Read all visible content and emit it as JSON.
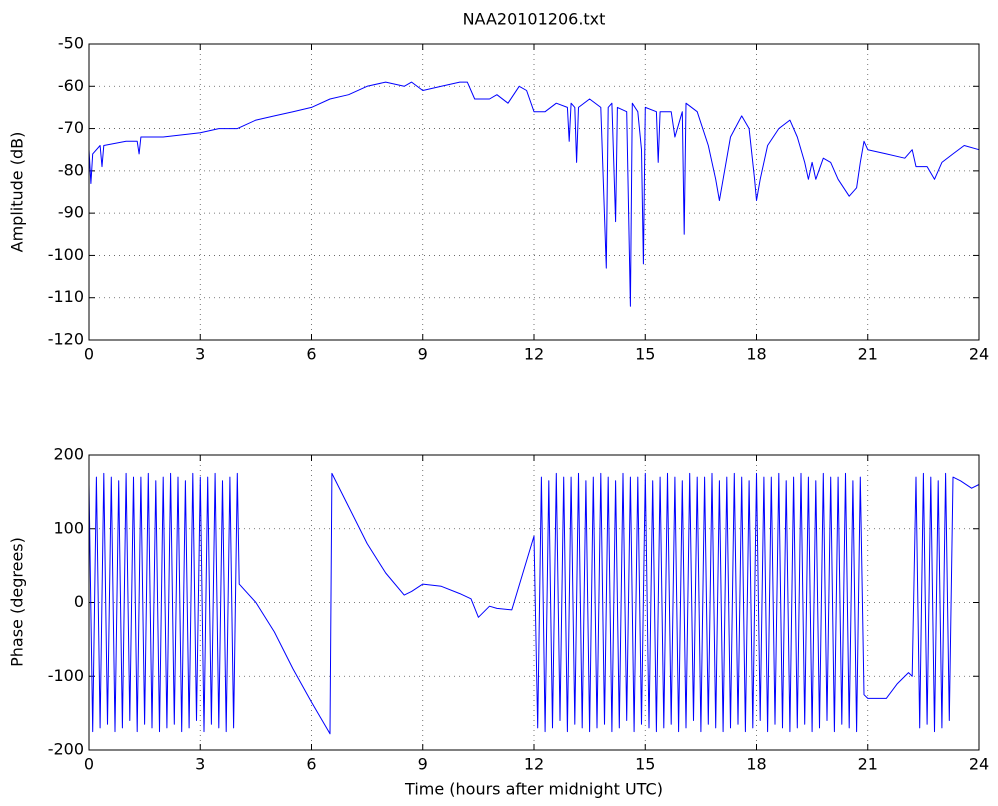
{
  "chart_data": [
    {
      "type": "line",
      "title": "NAA20101206.txt",
      "ylabel": "Amplitude (dB)",
      "color": "#0000ff",
      "grid": true,
      "xlim": [
        0,
        24
      ],
      "xticks": [
        0,
        3,
        6,
        9,
        12,
        15,
        18,
        21,
        24
      ],
      "ylim": [
        -120,
        -50
      ],
      "yticks": [
        -120,
        -110,
        -100,
        -90,
        -80,
        -70,
        -60,
        -50
      ],
      "x": [
        0,
        0.05,
        0.1,
        0.3,
        0.35,
        0.4,
        1,
        1.3,
        1.35,
        1.4,
        2,
        3,
        3.5,
        4,
        4.5,
        5,
        5.5,
        6,
        6.5,
        7,
        7.5,
        8,
        8.5,
        8.7,
        9,
        9.5,
        10,
        10.2,
        10.4,
        10.8,
        11,
        11.3,
        11.6,
        11.8,
        12,
        12.3,
        12.6,
        12.9,
        12.95,
        13,
        13.1,
        13.15,
        13.2,
        13.5,
        13.8,
        13.95,
        14,
        14.1,
        14.2,
        14.25,
        14.5,
        14.6,
        14.65,
        14.8,
        14.9,
        14.95,
        15,
        15.3,
        15.35,
        15.4,
        15.7,
        15.8,
        16,
        16.05,
        16.1,
        16.4,
        16.7,
        16.9,
        17,
        17.1,
        17.3,
        17.6,
        17.8,
        17.95,
        18,
        18.1,
        18.3,
        18.6,
        18.9,
        19.1,
        19.3,
        19.4,
        19.5,
        19.6,
        19.8,
        20,
        20.2,
        20.5,
        20.7,
        20.8,
        20.9,
        21,
        21.5,
        22,
        22.2,
        22.3,
        22.6,
        22.8,
        23,
        23.3,
        23.6,
        24
      ],
      "values": [
        -75,
        -83,
        -76,
        -74,
        -79,
        -74,
        -73,
        -73,
        -76,
        -72,
        -72,
        -71,
        -70,
        -70,
        -68,
        -67,
        -66,
        -65,
        -63,
        -62,
        -60,
        -59,
        -60,
        -59,
        -61,
        -60,
        -59,
        -59,
        -63,
        -63,
        -62,
        -64,
        -60,
        -61,
        -66,
        -66,
        -64,
        -65,
        -73,
        -64,
        -65,
        -78,
        -65,
        -63,
        -65,
        -103,
        -65,
        -64,
        -92,
        -65,
        -66,
        -112,
        -64,
        -66,
        -75,
        -102,
        -65,
        -66,
        -78,
        -66,
        -66,
        -72,
        -66,
        -95,
        -64,
        -66,
        -74,
        -82,
        -87,
        -82,
        -72,
        -67,
        -70,
        -82,
        -87,
        -82,
        -74,
        -70,
        -68,
        -72,
        -78,
        -82,
        -78,
        -82,
        -77,
        -78,
        -82,
        -86,
        -84,
        -78,
        -73,
        -75,
        -76,
        -77,
        -75,
        -79,
        -79,
        -82,
        -78,
        -76,
        -74,
        -75
      ]
    },
    {
      "type": "line",
      "ylabel": "Phase (degrees)",
      "xlabel": "Time (hours after midnight UTC)",
      "color": "#0000ff",
      "grid": true,
      "xlim": [
        0,
        24
      ],
      "xticks": [
        0,
        3,
        6,
        9,
        12,
        15,
        18,
        21,
        24
      ],
      "ylim": [
        -200,
        200
      ],
      "yticks": [
        -200,
        -100,
        0,
        100,
        200
      ],
      "x": [
        0,
        0.1,
        0.2,
        0.3,
        0.4,
        0.5,
        0.6,
        0.7,
        0.8,
        0.9,
        1,
        1.1,
        1.2,
        1.3,
        1.4,
        1.5,
        1.6,
        1.7,
        1.8,
        1.9,
        2,
        2.1,
        2.2,
        2.3,
        2.4,
        2.5,
        2.6,
        2.7,
        2.8,
        2.9,
        3,
        3.1,
        3.2,
        3.3,
        3.4,
        3.5,
        3.6,
        3.7,
        3.8,
        3.9,
        4,
        4.05,
        4.5,
        5,
        5.5,
        6,
        6.5,
        6.55,
        7,
        7.5,
        8,
        8.5,
        8.7,
        9,
        9.5,
        10,
        10.3,
        10.5,
        10.8,
        11,
        11.4,
        11.7,
        12,
        12.1,
        12.2,
        12.3,
        12.4,
        12.5,
        12.6,
        12.7,
        12.8,
        12.9,
        13,
        13.1,
        13.2,
        13.3,
        13.4,
        13.5,
        13.6,
        13.7,
        13.8,
        13.9,
        14,
        14.1,
        14.2,
        14.3,
        14.4,
        14.5,
        14.6,
        14.7,
        14.8,
        14.9,
        15,
        15.1,
        15.2,
        15.3,
        15.4,
        15.5,
        15.6,
        15.7,
        15.8,
        15.9,
        16,
        16.1,
        16.2,
        16.3,
        16.4,
        16.5,
        16.6,
        16.7,
        16.8,
        16.9,
        17,
        17.1,
        17.2,
        17.3,
        17.4,
        17.5,
        17.6,
        17.7,
        17.8,
        17.9,
        18,
        18.1,
        18.2,
        18.3,
        18.4,
        18.5,
        18.6,
        18.7,
        18.8,
        18.9,
        19,
        19.1,
        19.2,
        19.3,
        19.4,
        19.5,
        19.6,
        19.7,
        19.8,
        19.9,
        20,
        20.1,
        20.2,
        20.3,
        20.4,
        20.5,
        20.6,
        20.7,
        20.8,
        20.9,
        21,
        21.5,
        21.8,
        22.1,
        22.2,
        22.3,
        22.4,
        22.5,
        22.6,
        22.7,
        22.8,
        22.9,
        23,
        23.1,
        23.2,
        23.3,
        23.5,
        23.8,
        24
      ],
      "values": [
        160,
        -175,
        170,
        -170,
        175,
        -165,
        170,
        -175,
        165,
        -170,
        175,
        -160,
        170,
        -175,
        170,
        -165,
        175,
        -170,
        165,
        -175,
        170,
        -170,
        175,
        -165,
        170,
        -175,
        165,
        -170,
        175,
        -160,
        170,
        -175,
        170,
        -165,
        175,
        -170,
        165,
        -175,
        170,
        -170,
        175,
        25,
        0,
        -40,
        -90,
        -135,
        -178,
        175,
        130,
        80,
        40,
        10,
        15,
        25,
        22,
        12,
        5,
        -20,
        -5,
        -8,
        -10,
        40,
        90,
        -170,
        170,
        -175,
        165,
        -170,
        175,
        -160,
        170,
        -175,
        170,
        -165,
        175,
        -170,
        165,
        -175,
        170,
        -170,
        175,
        -165,
        170,
        -175,
        165,
        -170,
        175,
        -160,
        170,
        -175,
        170,
        -165,
        175,
        -170,
        165,
        -175,
        170,
        -170,
        175,
        -165,
        170,
        -175,
        165,
        -170,
        175,
        -160,
        170,
        -175,
        170,
        -165,
        175,
        -170,
        165,
        -175,
        170,
        -170,
        175,
        -165,
        170,
        -175,
        165,
        -170,
        175,
        -160,
        170,
        -175,
        170,
        -165,
        175,
        -170,
        165,
        -175,
        170,
        -170,
        175,
        -165,
        170,
        -175,
        165,
        -170,
        175,
        -160,
        170,
        -175,
        170,
        -165,
        175,
        -170,
        165,
        -175,
        170,
        -125,
        -130,
        -130,
        -110,
        -95,
        -100,
        170,
        -170,
        175,
        -165,
        170,
        -175,
        165,
        -170,
        175,
        -160,
        170,
        165,
        155,
        160
      ]
    }
  ]
}
